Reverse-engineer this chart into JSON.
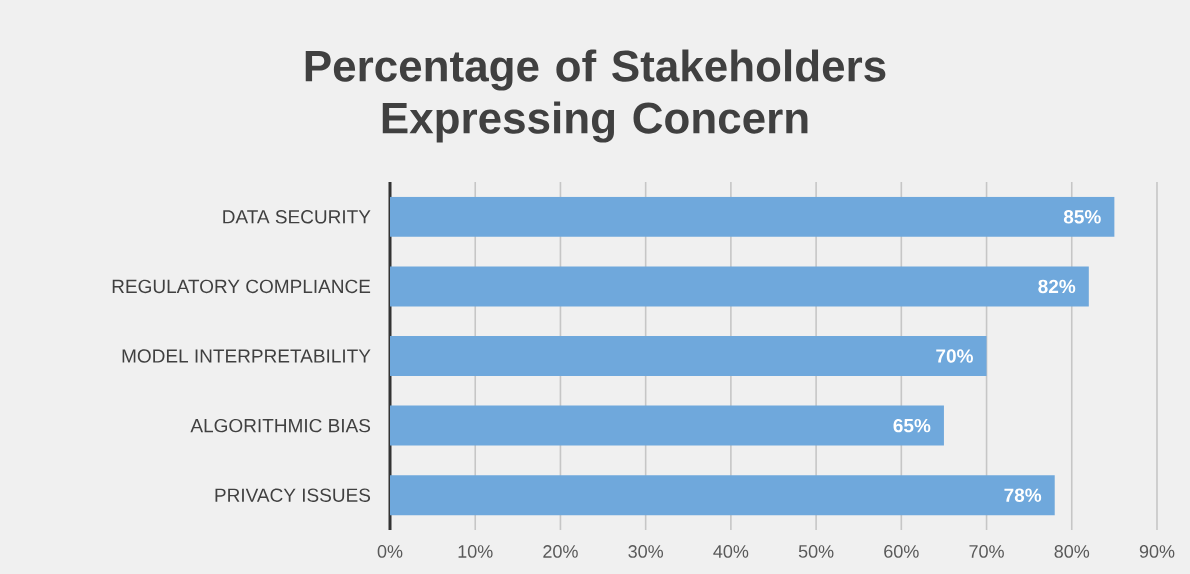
{
  "chart_data": {
    "type": "bar",
    "orientation": "horizontal",
    "title": "Percentage of Stakeholders Expressing Concern",
    "categories": [
      "DATA SECURITY",
      "REGULATORY COMPLIANCE",
      "MODEL INTERPRETABILITY",
      "ALGORITHMIC BIAS",
      "PRIVACY ISSUES"
    ],
    "values": [
      85,
      82,
      70,
      65,
      78
    ],
    "value_labels": [
      "85%",
      "82%",
      "70%",
      "65%",
      "78%"
    ],
    "color": "#6fa8dc",
    "xlim": [
      0,
      90
    ],
    "xticks": [
      {
        "value": 0,
        "label": "0%"
      },
      {
        "value": 10,
        "label": "10%"
      },
      {
        "value": 20,
        "label": "20%"
      },
      {
        "value": 30,
        "label": "30%"
      },
      {
        "value": 40,
        "label": "40%"
      },
      {
        "value": 50,
        "label": "50%"
      },
      {
        "value": 60,
        "label": "60%"
      },
      {
        "value": 70,
        "label": "70%"
      },
      {
        "value": 80,
        "label": "80%"
      },
      {
        "value": 90,
        "label": "90%"
      }
    ],
    "grid": "x"
  }
}
